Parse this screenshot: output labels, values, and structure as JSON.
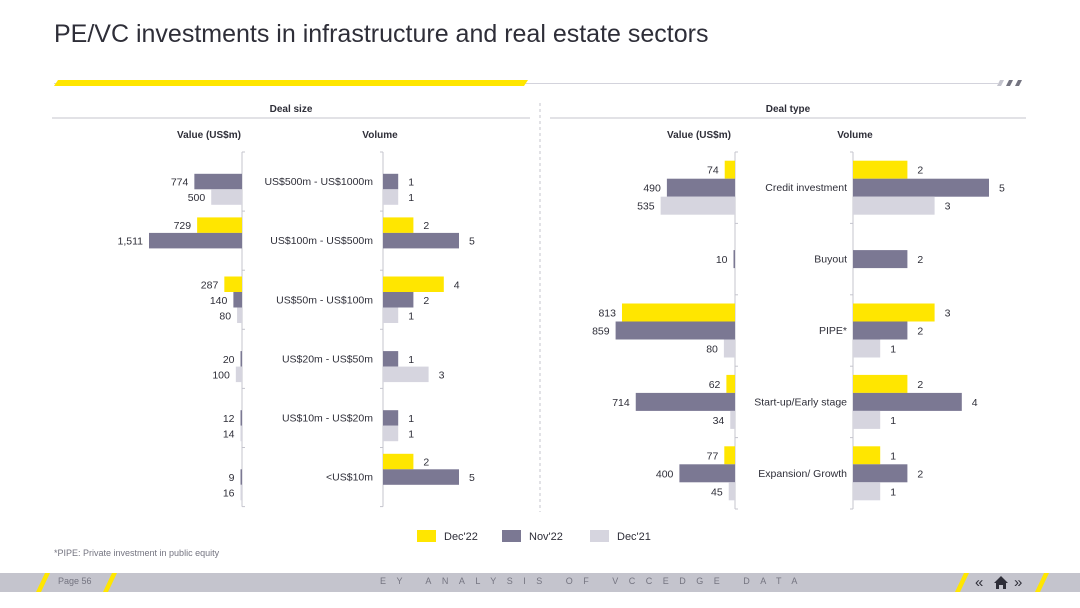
{
  "page_title": "PE/VC investments in infrastructure and real estate sectors",
  "footnote": "*PIPE: Private investment in public equity",
  "footer": {
    "page_label": "Page 56",
    "center_text": "EY ANALYSIS OF VCCEDGE DATA",
    "prev_icon": "double-chevron-left",
    "home_icon": "home",
    "next_icon": "double-chevron-right"
  },
  "colors": {
    "dec22": "#ffe600",
    "nov22": "#7b7893",
    "dec21": "#d6d5df",
    "text": "#2e2e38"
  },
  "chart_data": [
    {
      "type": "bar",
      "orientation": "horizontal",
      "panel_title": "Deal size",
      "value_header": "Value (US$m)",
      "volume_header": "Volume",
      "categories": [
        "US$500m - US$1000m",
        "US$100m - US$500m",
        "US$50m - US$100m",
        "US$20m - US$50m",
        "US$10m - US$20m",
        "<US$10m"
      ],
      "value_series": [
        {
          "name": "Dec'22",
          "values": [
            null,
            729,
            287,
            null,
            null,
            null
          ]
        },
        {
          "name": "Nov'22",
          "values": [
            774,
            1511,
            140,
            20,
            12,
            9
          ]
        },
        {
          "name": "Dec'21",
          "values": [
            500,
            null,
            80,
            100,
            14,
            16
          ]
        }
      ],
      "value_labels": [
        [
          "",
          "774",
          "500"
        ],
        [
          "729",
          "1,511",
          ""
        ],
        [
          "287",
          "140",
          "80"
        ],
        [
          "",
          "20",
          "100"
        ],
        [
          "",
          "12",
          "14"
        ],
        [
          "",
          "9",
          "16"
        ]
      ],
      "volume_series": [
        {
          "name": "Dec'22",
          "values": [
            null,
            2,
            4,
            null,
            null,
            2
          ]
        },
        {
          "name": "Nov'22",
          "values": [
            1,
            5,
            2,
            1,
            1,
            5
          ]
        },
        {
          "name": "Dec'21",
          "values": [
            1,
            null,
            1,
            3,
            1,
            null
          ]
        }
      ],
      "value_max": 1511,
      "volume_max": 5
    },
    {
      "type": "bar",
      "orientation": "horizontal",
      "panel_title": "Deal type",
      "value_header": "Value (US$m)",
      "volume_header": "Volume",
      "categories": [
        "Credit investment",
        "Buyout",
        "PIPE*",
        "Start-up/Early stage",
        "Expansion/ Growth"
      ],
      "value_series": [
        {
          "name": "Dec'22",
          "values": [
            74,
            null,
            813,
            62,
            77
          ]
        },
        {
          "name": "Nov'22",
          "values": [
            490,
            10,
            859,
            714,
            400
          ]
        },
        {
          "name": "Dec'21",
          "values": [
            535,
            null,
            80,
            34,
            45
          ]
        }
      ],
      "value_labels": [
        [
          "74",
          "490",
          "535"
        ],
        [
          "",
          "10",
          ""
        ],
        [
          "813",
          "859",
          "80"
        ],
        [
          "62",
          "714",
          "34"
        ],
        [
          "77",
          "400",
          "45"
        ]
      ],
      "volume_series": [
        {
          "name": "Dec'22",
          "values": [
            2,
            null,
            3,
            2,
            1
          ]
        },
        {
          "name": "Nov'22",
          "values": [
            5,
            2,
            2,
            4,
            2
          ]
        },
        {
          "name": "Dec'21",
          "values": [
            3,
            null,
            1,
            1,
            1
          ]
        }
      ],
      "value_max": 1000,
      "volume_max": 5
    }
  ],
  "legend": [
    {
      "name": "Dec'22",
      "color": "#ffe600"
    },
    {
      "name": "Nov'22",
      "color": "#7b7893"
    },
    {
      "name": "Dec'21",
      "color": "#d6d5df"
    }
  ]
}
